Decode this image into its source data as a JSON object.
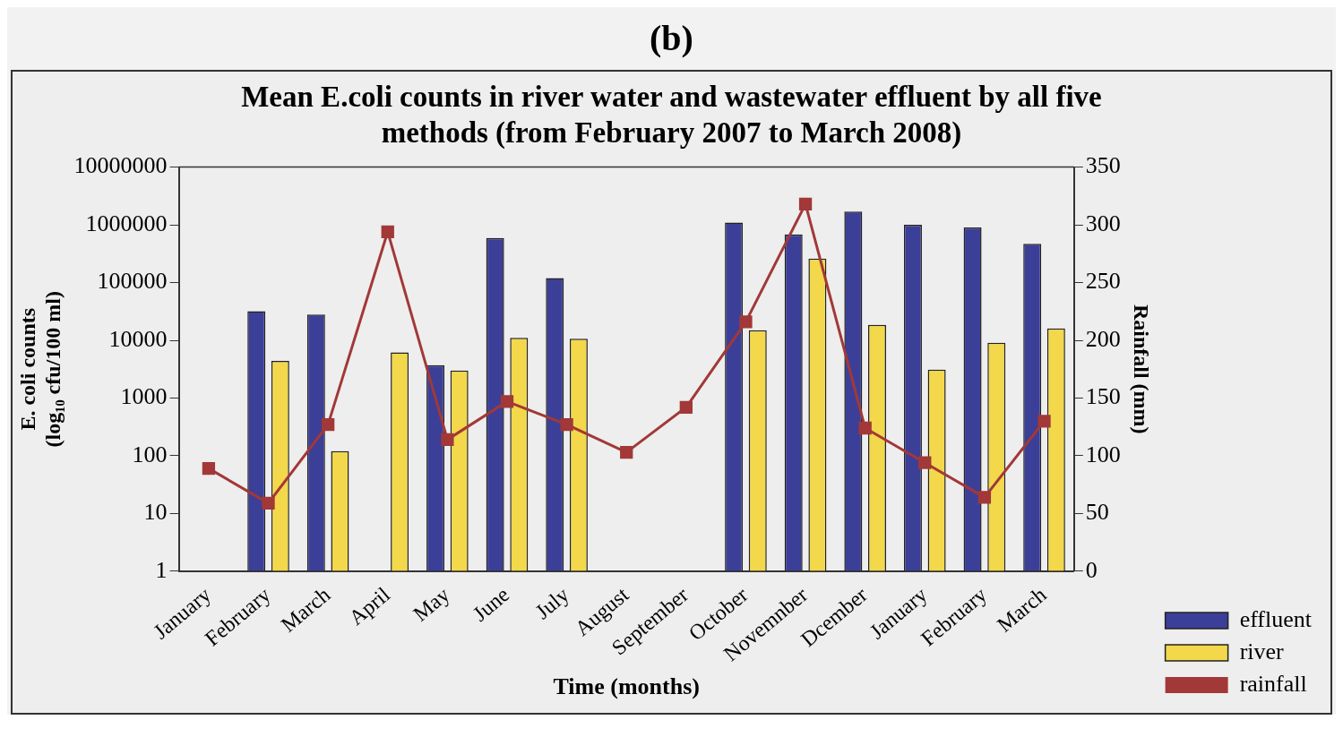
{
  "chart_data": {
    "type": "bar",
    "title": "Mean E.coli  counts in river water and wastewater effluent by all five methods (from February 2007 to March 2008)",
    "xlabel": "Time (months)",
    "ylabel": "E. coli counts (log₁₀ cfu/100 ml)",
    "y2label": "Rainfall (mm)",
    "annotations": [
      "(b)"
    ],
    "categories": [
      "January",
      "February",
      "March",
      "April",
      "May",
      "June",
      "July",
      "August",
      "September",
      "October",
      "Novemnber",
      "Dcember",
      "January",
      "February",
      "March"
    ],
    "series": [
      {
        "name": "effluent",
        "color": "#3c3f98",
        "values": [
          null,
          32000,
          28000,
          null,
          3700,
          590000,
          120000,
          null,
          null,
          1100000,
          680000,
          1700000,
          1000000,
          900000,
          470000
        ]
      },
      {
        "name": "river",
        "color": "#f2d84a",
        "values": [
          null,
          4400,
          120,
          6200,
          3000,
          11000,
          10700,
          null,
          null,
          15000,
          260000,
          18500,
          3100,
          9100,
          16000
        ]
      },
      {
        "name": "rainfall",
        "type": "line",
        "axis": "y2",
        "color": "#a23838",
        "marker": "square",
        "values": [
          89,
          59,
          127,
          294,
          114,
          147,
          127,
          103,
          142,
          216,
          318,
          124,
          94,
          64,
          130
        ]
      }
    ],
    "log": "y",
    "ylim": [
      1,
      10000000
    ],
    "yticks": [
      1,
      10,
      100,
      1000,
      10000,
      100000,
      1000000,
      10000000
    ],
    "y2lim": [
      0,
      350
    ],
    "y2ticks": [
      0,
      50,
      100,
      150,
      200,
      250,
      300,
      350
    ],
    "grid": false,
    "legend": "bottom right"
  }
}
